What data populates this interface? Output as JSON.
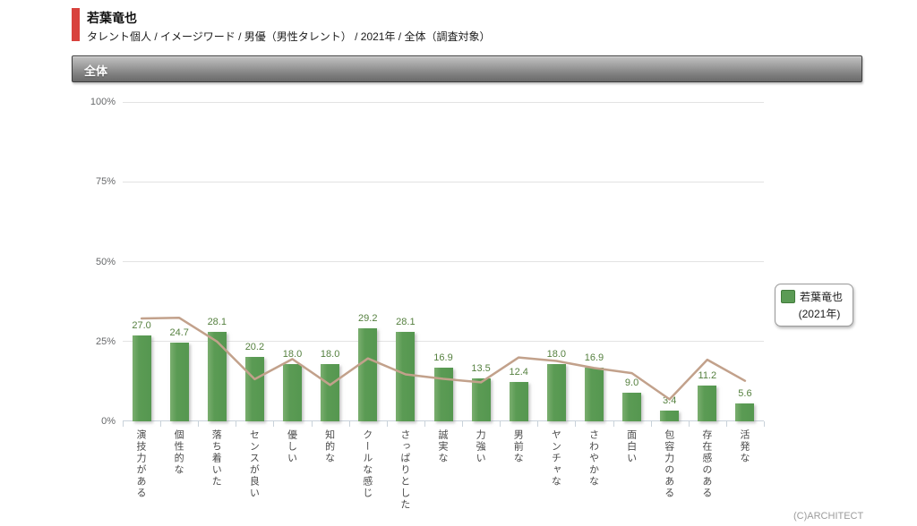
{
  "header": {
    "title": "若葉竜也",
    "breadcrumb": "タレント個人 / イメージワード / 男優（男性タレント） / 2021年 / 全体（調査対象）",
    "accent_color": "#d8423d"
  },
  "section": {
    "label": "全体"
  },
  "legend": {
    "line1": "若葉竜也",
    "line2": "(2021年)",
    "swatch_color": "#5b9b55"
  },
  "footer": {
    "copyright": "(C)ARCHITECT"
  },
  "chart_data": {
    "type": "bar",
    "title": "若葉竜也 イメージワード 2021年 全体（調査対象）",
    "categories": [
      "演技力がある",
      "個性的な",
      "落ち着いた",
      "センスが良い",
      "優しい",
      "知的な",
      "クールな感じ",
      "さっぱりとした",
      "誠実な",
      "力強い",
      "男前な",
      "ヤンチャな",
      "さわやかな",
      "面白い",
      "包容力のある",
      "存在感のある",
      "活発な"
    ],
    "series": [
      {
        "name": "若葉竜也 (2021年)",
        "type": "bar",
        "color": "#5b9b55",
        "values": [
          27.0,
          24.7,
          28.1,
          20.2,
          18.0,
          18.0,
          29.2,
          28.1,
          16.9,
          13.5,
          12.4,
          18.0,
          16.9,
          9.0,
          3.4,
          11.2,
          5.6
        ]
      },
      {
        "name": "reference-line (estimated from pixels, unlabeled)",
        "type": "line",
        "color": "#c2a18b",
        "values": [
          32.2,
          32.4,
          25.0,
          13.2,
          19.5,
          11.4,
          19.7,
          14.7,
          13.3,
          12.2,
          20.0,
          18.9,
          16.7,
          15.1,
          6.9,
          19.3,
          12.7
        ]
      }
    ],
    "xlabel": "",
    "ylabel": "",
    "ylim": [
      0,
      100
    ],
    "yticks": [
      0,
      25,
      50,
      75,
      100
    ],
    "ytick_labels": [
      "0%",
      "25%",
      "50%",
      "75%",
      "100%"
    ],
    "grid": true,
    "value_labels": true,
    "value_label_color": "#55803f",
    "legend_position": "right"
  }
}
